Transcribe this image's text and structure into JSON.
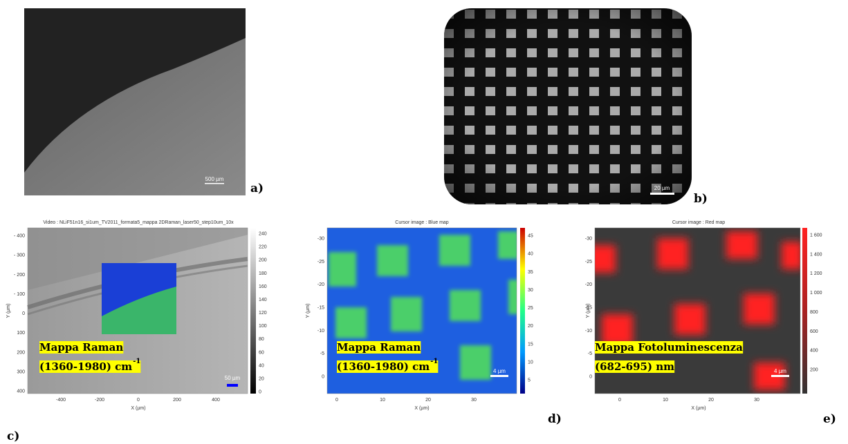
{
  "panels": [
    {
      "label": "a)",
      "scale_bar": "500 µm"
    },
    {
      "label": "b)",
      "scale_bar": "20 µm"
    },
    {
      "label": "c)",
      "title": "Video : NLiF51n16_si1um_TV2011_formata5_mappa 2DRaman_laser50_step10um_10x",
      "x_label": "X (µm)",
      "y_label": "Y (µm)",
      "x_ticks": [
        "-400",
        "-200",
        "0",
        "200",
        "400"
      ],
      "y_ticks": [
        "- 400",
        "- 300",
        "- 200",
        "- 100",
        "0",
        "100",
        "200",
        "300",
        "400"
      ],
      "colorbar_ticks": [
        "240",
        "220",
        "200",
        "180",
        "160",
        "140",
        "120",
        "100",
        "80",
        "60",
        "40",
        "20",
        "0"
      ],
      "annotation": [
        "Mappa Raman",
        "(1360-1980) cm"
      ],
      "annotation_superscript": "-1",
      "scale_bar": "50 µm"
    },
    {
      "label": "d)",
      "title": "Cursor image : Blue map",
      "x_label": "X (µm)",
      "y_label": "Y (µm)",
      "x_ticks": [
        "0",
        "10",
        "20",
        "30"
      ],
      "y_ticks": [
        "-30",
        "-25",
        "-20",
        "-15",
        "-10",
        "-5",
        "0"
      ],
      "colorbar_ticks": [
        "45",
        "40",
        "35",
        "30",
        "25",
        "20",
        "15",
        "10",
        "5"
      ],
      "annotation": [
        "Mappa Raman",
        "(1360-1980) cm"
      ],
      "annotation_superscript": "-1",
      "scale_bar": "4 µm"
    },
    {
      "label": "e)",
      "title": "Cursor image : Red map",
      "x_label": "X (µm)",
      "y_label": "Y (µm)",
      "x_ticks": [
        "0",
        "10",
        "20",
        "30"
      ],
      "y_ticks": [
        "-30",
        "-25",
        "-20",
        "-15",
        "-10",
        "-5",
        "0"
      ],
      "colorbar_ticks": [
        "1 600",
        "1 400",
        "1 200",
        "1 000",
        "800",
        "600",
        "400",
        "200"
      ],
      "annotation": [
        "Mappa Fotoluminescenza",
        "(682-695) nm"
      ],
      "scale_bar": "4 µm"
    }
  ]
}
